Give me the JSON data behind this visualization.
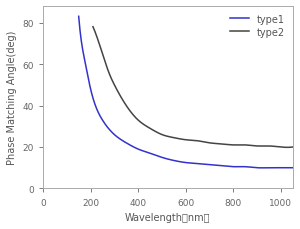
{
  "title": "",
  "xlabel": "Wavelength（nm）",
  "ylabel": "Phase Matching Angle(deg)",
  "xlim": [
    0,
    1050
  ],
  "ylim": [
    0,
    88
  ],
  "xticks": [
    0,
    200,
    400,
    600,
    800,
    1000
  ],
  "yticks": [
    0,
    20,
    40,
    60,
    80
  ],
  "type1_color": "#3333cc",
  "type2_color": "#444444",
  "type1_label": "type1",
  "type2_label": "type2",
  "legend_loc": "upper right",
  "background_color": "#ffffff",
  "figure_bg": "#ffffff",
  "type1_x": [
    150,
    160,
    175,
    200,
    250,
    300,
    350,
    400,
    450,
    500,
    550,
    600,
    650,
    700,
    750,
    800,
    850,
    900,
    950,
    1000,
    1050
  ],
  "type1_y": [
    83,
    72,
    62,
    48,
    33,
    26,
    22,
    19,
    17,
    15,
    13.5,
    12.5,
    12,
    11.5,
    11,
    10.5,
    10.5,
    10,
    10,
    10,
    10
  ],
  "type2_x": [
    210,
    230,
    250,
    280,
    300,
    350,
    400,
    450,
    500,
    550,
    600,
    650,
    700,
    750,
    800,
    850,
    900,
    950,
    1000,
    1050
  ],
  "type2_y": [
    78,
    72,
    65,
    55,
    50,
    40,
    33,
    29,
    26,
    24.5,
    23.5,
    23,
    22,
    21.5,
    21,
    21,
    20.5,
    20.5,
    20,
    20
  ]
}
